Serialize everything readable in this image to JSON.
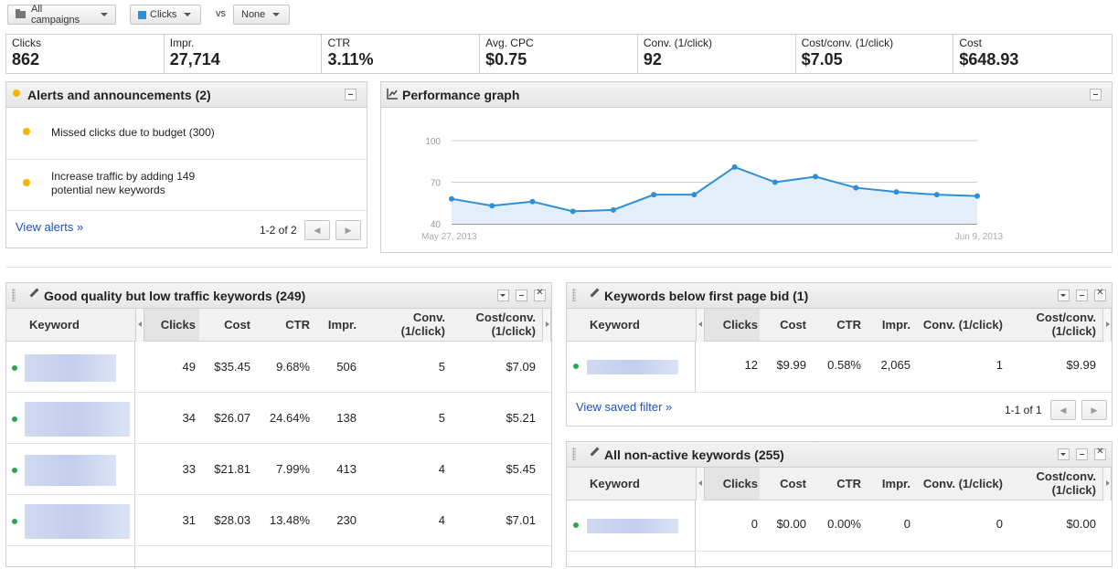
{
  "toolbar": {
    "campaigns": "All campaigns",
    "metric1": "Clicks",
    "vs": "vs",
    "metric2": "None"
  },
  "stats": [
    {
      "label": "Clicks",
      "value": "862"
    },
    {
      "label": "Impr.",
      "value": "27,714"
    },
    {
      "label": "CTR",
      "value": "3.11%"
    },
    {
      "label": "Avg. CPC",
      "value": "$0.75"
    },
    {
      "label": "Conv. (1/click)",
      "value": "92"
    },
    {
      "label": "Cost/conv. (1/click)",
      "value": "$7.05"
    },
    {
      "label": "Cost",
      "value": "$648.93"
    }
  ],
  "alerts": {
    "title": "Alerts and announcements (2)",
    "items": [
      {
        "text": "Missed clicks due to budget (300)"
      },
      {
        "line1": "Increase traffic by adding 149",
        "line2": "potential new keywords"
      }
    ],
    "view_link": "View alerts »",
    "pager": "1-2 of 2"
  },
  "graph": {
    "title": "Performance graph",
    "chart_data": {
      "type": "area",
      "yticks": [
        "100",
        "70",
        "40"
      ],
      "ylim": [
        40,
        100
      ],
      "x_start_label": "May 27, 2013",
      "x_end_label": "Jun 9, 2013",
      "values": [
        58,
        53,
        56,
        49,
        50,
        61,
        61,
        81,
        70,
        74,
        66,
        63,
        61,
        60
      ],
      "color": "#2e8fd6"
    }
  },
  "good_quality": {
    "title": "Good quality but low traffic keywords (249)",
    "headers": {
      "keyword": "Keyword",
      "clicks": "Clicks",
      "cost": "Cost",
      "ctr": "CTR",
      "impr": "Impr.",
      "conv1": "Conv.",
      "conv2": "(1/click)",
      "cpc1": "Cost/conv.",
      "cpc2": "(1/click)"
    },
    "rows": [
      {
        "clicks": "49",
        "cost": "$35.45",
        "ctr": "9.68%",
        "impr": "506",
        "conv": "5",
        "costconv": "$7.09"
      },
      {
        "clicks": "34",
        "cost": "$26.07",
        "ctr": "24.64%",
        "impr": "138",
        "conv": "5",
        "costconv": "$5.21"
      },
      {
        "clicks": "33",
        "cost": "$21.81",
        "ctr": "7.99%",
        "impr": "413",
        "conv": "4",
        "costconv": "$5.45"
      },
      {
        "clicks": "31",
        "cost": "$28.03",
        "ctr": "13.48%",
        "impr": "230",
        "conv": "4",
        "costconv": "$7.01"
      }
    ]
  },
  "below_bid": {
    "title": "Keywords below first page bid (1)",
    "headers": {
      "keyword": "Keyword",
      "clicks": "Clicks",
      "cost": "Cost",
      "ctr": "CTR",
      "impr": "Impr.",
      "conv": "Conv. (1/click)",
      "cpc1": "Cost/conv.",
      "cpc2": "(1/click)"
    },
    "row": {
      "clicks": "12",
      "cost": "$9.99",
      "ctr": "0.58%",
      "impr": "2,065",
      "conv": "1",
      "costconv": "$9.99"
    },
    "view_link": "View saved filter »",
    "pager": "1-1 of 1"
  },
  "non_active": {
    "title": "All non-active keywords (255)",
    "headers": {
      "keyword": "Keyword",
      "clicks": "Clicks",
      "cost": "Cost",
      "ctr": "CTR",
      "impr": "Impr.",
      "conv": "Conv. (1/click)",
      "cpc1": "Cost/conv.",
      "cpc2": "(1/click)"
    },
    "row": {
      "clicks": "0",
      "cost": "$0.00",
      "ctr": "0.00%",
      "impr": "0",
      "conv": "0",
      "costconv": "$0.00"
    }
  }
}
